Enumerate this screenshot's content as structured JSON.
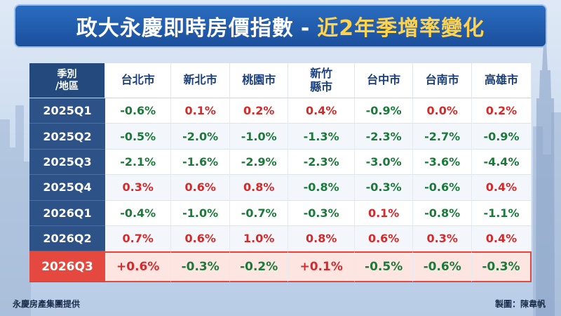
{
  "title": {
    "main": "政大永慶即時房價指數",
    "dash": "-",
    "sub": "近2年季增率變化"
  },
  "chart_data": {
    "type": "table",
    "corner_label_line1": "季別",
    "corner_label_line2": "/地區",
    "columns": [
      {
        "l1": "台北市",
        "l2": ""
      },
      {
        "l1": "新北市",
        "l2": ""
      },
      {
        "l1": "桃園市",
        "l2": ""
      },
      {
        "l1": "新竹",
        "l2": "縣市"
      },
      {
        "l1": "台中市",
        "l2": ""
      },
      {
        "l1": "台南市",
        "l2": ""
      },
      {
        "l1": "高雄市",
        "l2": ""
      }
    ],
    "rows": [
      {
        "period": "2025Q1",
        "values": [
          "-0.6%",
          "0.1%",
          "0.2%",
          "0.4%",
          "-0.9%",
          "0.0%",
          "0.2%"
        ]
      },
      {
        "period": "2025Q2",
        "values": [
          "-0.5%",
          "-2.0%",
          "-1.0%",
          "-1.3%",
          "-2.3%",
          "-2.7%",
          "-0.9%"
        ]
      },
      {
        "period": "2025Q3",
        "values": [
          "-2.1%",
          "-1.6%",
          "-2.9%",
          "-2.3%",
          "-3.0%",
          "-3.6%",
          "-4.4%"
        ]
      },
      {
        "period": "2025Q4",
        "values": [
          "0.3%",
          "0.6%",
          "0.8%",
          "-0.8%",
          "-0.3%",
          "-0.6%",
          "0.4%"
        ]
      },
      {
        "period": "2026Q1",
        "values": [
          "-0.4%",
          "-1.0%",
          "-0.7%",
          "-0.3%",
          "0.1%",
          "-0.8%",
          "-1.1%"
        ]
      },
      {
        "period": "2026Q2",
        "values": [
          "0.7%",
          "0.6%",
          "1.0%",
          "0.8%",
          "0.6%",
          "0.3%",
          "0.4%"
        ]
      },
      {
        "period": "2026Q3",
        "values": [
          "+0.6%",
          "-0.3%",
          "-0.2%",
          "+0.1%",
          "-0.5%",
          "-0.6%",
          "-0.3%"
        ],
        "highlight": true
      }
    ],
    "colors": {
      "positive": "#d42a2a",
      "negative": "#1b7a3a",
      "highlight": "#e5483e"
    }
  },
  "footer": {
    "source": "永慶房產集團提供",
    "credit": "製圖：陳韋帆"
  }
}
